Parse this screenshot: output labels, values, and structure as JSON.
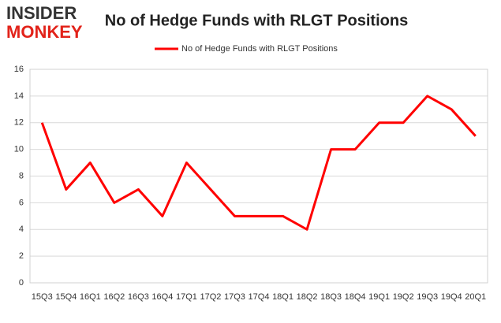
{
  "logo": {
    "top": "INSIDER",
    "bottom": "MONKEY"
  },
  "chart_data": {
    "type": "line",
    "title": "No of Hedge Funds with RLGT Positions",
    "categories": [
      "15Q3",
      "15Q4",
      "16Q1",
      "16Q2",
      "16Q3",
      "16Q4",
      "17Q1",
      "17Q2",
      "17Q3",
      "17Q4",
      "18Q1",
      "18Q2",
      "18Q3",
      "18Q4",
      "19Q1",
      "19Q2",
      "19Q3",
      "19Q4",
      "20Q1"
    ],
    "series": [
      {
        "name": "No of Hedge Funds with RLGT Positions",
        "color": "#ff0000",
        "values": [
          12,
          7,
          9,
          6,
          7,
          5,
          9,
          7,
          5,
          5,
          5,
          4,
          10,
          10,
          12,
          12,
          14,
          13,
          11
        ]
      }
    ],
    "ylim": [
      0,
      16
    ],
    "yticks": [
      0,
      2,
      4,
      6,
      8,
      10,
      12,
      14,
      16
    ],
    "grid": true,
    "legend": "top"
  }
}
